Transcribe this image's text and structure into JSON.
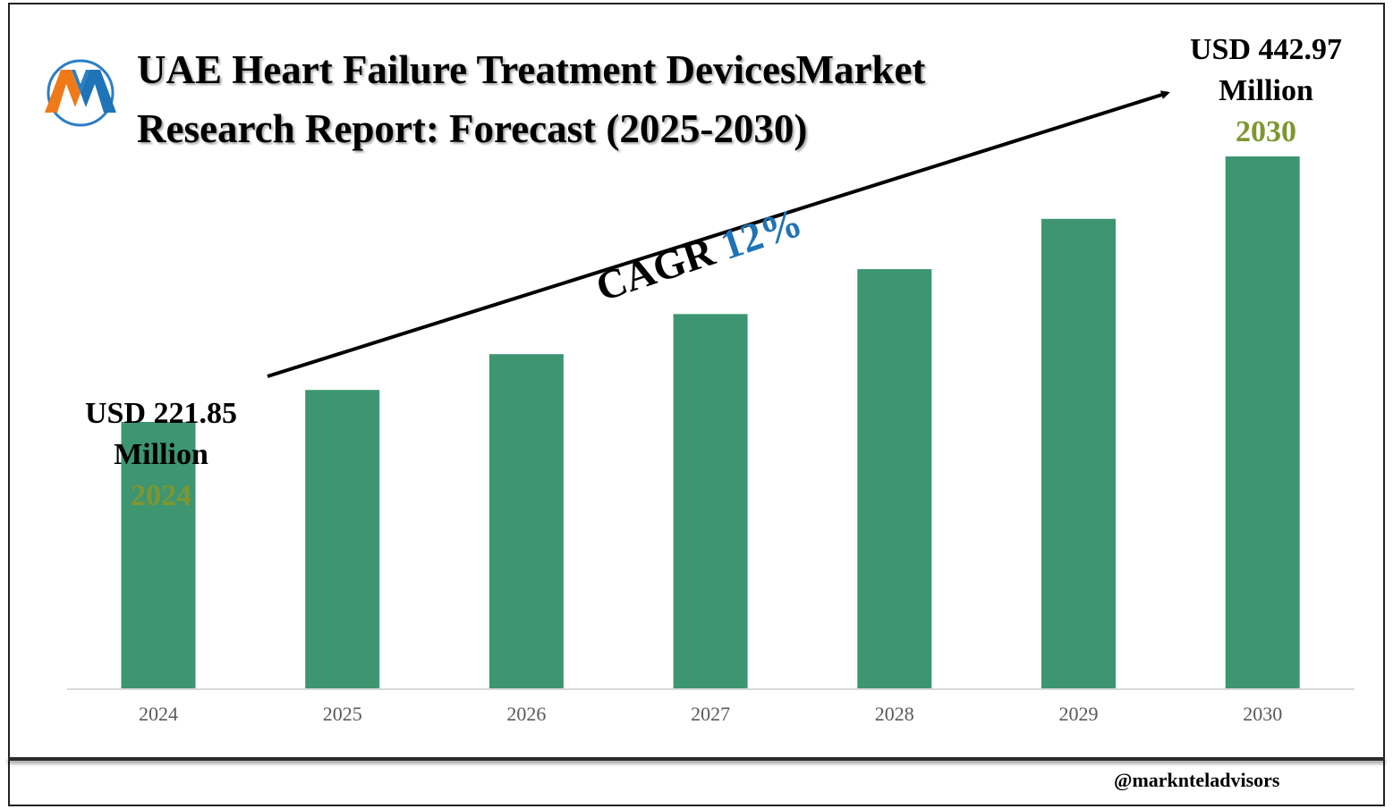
{
  "title_line1": "UAE Heart Failure Treatment DevicesMarket",
  "title_line2": "Research Report: Forecast (2025-2030)",
  "start_callout": {
    "amount_line1": "USD 221.85",
    "amount_line2": "Million",
    "year": "2024"
  },
  "end_callout": {
    "amount_line1": "USD 442.97",
    "amount_line2": "Million",
    "year": "2030"
  },
  "cagr": {
    "label": "CAGR",
    "value": "12%"
  },
  "handle": "@marknteladvisors",
  "colors": {
    "bar": "#3d9671",
    "year_highlight": "#7f9630",
    "cagr_value": "#1f73b7",
    "axis": "#d9d9d9",
    "tick_label": "#595959"
  },
  "chart_data": {
    "type": "bar",
    "title": "UAE Heart Failure Treatment DevicesMarket Research Report: Forecast (2025-2030)",
    "categories": [
      "2024",
      "2025",
      "2026",
      "2027",
      "2028",
      "2029",
      "2030"
    ],
    "values": [
      221.85,
      248.5,
      278.3,
      311.7,
      349.1,
      391.0,
      442.97
    ],
    "unit": "USD Million",
    "ylim": [
      0,
      442.97
    ],
    "grid": false,
    "legend": "none"
  }
}
